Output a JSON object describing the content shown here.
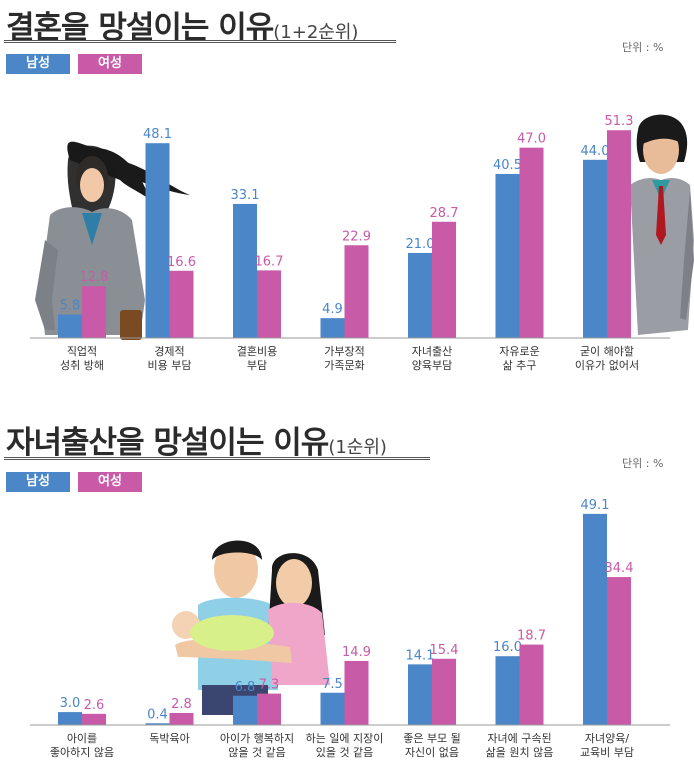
{
  "colors": {
    "male": "#4a86c8",
    "female": "#c85aa8",
    "title": "#2b2b2b"
  },
  "icons": [
    "woman-illustration",
    "man-illustration",
    "family-illustration"
  ],
  "charts": [
    {
      "title_main": "결혼을 망설이는 이유",
      "title_sub": "(1+2순위)",
      "unit": "단위 : %",
      "legend": {
        "male": "남성",
        "female": "여성"
      }
    },
    {
      "title_main": "자녀출산을 망설이는 이유",
      "title_sub": "(1순위)",
      "unit": "단위 : %",
      "legend": {
        "male": "남성",
        "female": "여성"
      }
    }
  ],
  "chart_data": [
    {
      "type": "bar",
      "title": "결혼을 망설이는 이유(1+2순위)",
      "unit": "단위 : %",
      "categories": [
        [
          "직업적",
          "성취 방해"
        ],
        [
          "경제적",
          "비용 부담"
        ],
        [
          "결혼비용",
          "부담"
        ],
        [
          "가부장적",
          "가족문화"
        ],
        [
          "자녀출산",
          "양육부담"
        ],
        [
          "자유로운",
          "삶 추구"
        ],
        [
          "굳이 해야할",
          "이유가 없어서"
        ]
      ],
      "series": [
        {
          "name": "남성",
          "values": [
            5.8,
            48.1,
            33.1,
            4.9,
            21.0,
            40.5,
            44.0
          ]
        },
        {
          "name": "여성",
          "values": [
            12.8,
            16.6,
            16.7,
            22.9,
            28.7,
            47.0,
            51.3
          ]
        }
      ],
      "value_labels": [
        [
          "5.8",
          "48.1",
          "33.1",
          "4.9",
          "21.0",
          "40.5",
          "44.0"
        ],
        [
          "12.8",
          "16.6",
          "16.7",
          "22.9",
          "28.7",
          "47.0",
          "51.3"
        ]
      ],
      "legend_position": "top-left",
      "grid": false
    },
    {
      "type": "bar",
      "title": "자녀출산을 망설이는 이유(1순위)",
      "unit": "단위 : %",
      "categories": [
        [
          "아이를",
          "좋아하지 않음"
        ],
        [
          "독박육아"
        ],
        [
          "아이가 행복하지",
          "않을 것 같음"
        ],
        [
          "하는 일에 지장이",
          "있을 것 같음"
        ],
        [
          "좋은 부모 될",
          "자신이 없음"
        ],
        [
          "자녀에 구속된",
          "삶을 원치 않음"
        ],
        [
          "자녀양육/",
          "교육비 부담"
        ]
      ],
      "series": [
        {
          "name": "남성",
          "values": [
            3.0,
            0.4,
            6.8,
            7.5,
            14.1,
            16.0,
            49.1
          ]
        },
        {
          "name": "여성",
          "values": [
            2.6,
            2.8,
            7.3,
            14.9,
            15.4,
            18.7,
            34.4
          ]
        }
      ],
      "value_labels": [
        [
          "3.0",
          "0.4",
          "6.8",
          "7.5",
          "14.1",
          "16.0",
          "49.1"
        ],
        [
          "2.6",
          "2.8",
          "7.3",
          "14.9",
          "15.4",
          "18.7",
          "34.4"
        ]
      ],
      "legend_position": "top-left",
      "grid": false
    }
  ]
}
